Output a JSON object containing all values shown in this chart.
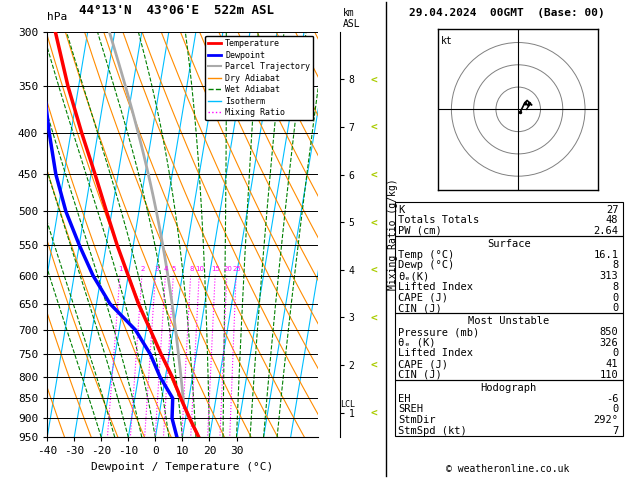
{
  "title_left": "44°13'N  43°06'E  522m ASL",
  "title_right": "29.04.2024  00GMT  (Base: 00)",
  "label_hpa": "hPa",
  "label_km_asl": "km\nASL",
  "xlabel": "Dewpoint / Temperature (°C)",
  "ylabel_mixing": "Mixing Ratio (g/kg)",
  "pressure_ticks": [
    300,
    350,
    400,
    450,
    500,
    550,
    600,
    650,
    700,
    750,
    800,
    850,
    900,
    950
  ],
  "temp_ticks": [
    -40,
    -30,
    -20,
    -10,
    0,
    10,
    20,
    30
  ],
  "background_color": "#ffffff",
  "color_temp": "#ff0000",
  "color_dewp": "#0000ff",
  "color_parcel": "#aaaaaa",
  "color_dry_adiabat": "#ff8c00",
  "color_wet_adiabat": "#008000",
  "color_isotherm": "#00bfff",
  "color_mixing": "#ff00ff",
  "color_km_arrows": "#aacc00",
  "stats_K": 27,
  "stats_TT": 48,
  "stats_PW": 2.64,
  "stats_surf_temp": 16.1,
  "stats_surf_dewp": 8,
  "stats_surf_thetae": 313,
  "stats_surf_li": 8,
  "stats_surf_cape": 0,
  "stats_surf_cin": 0,
  "stats_mu_press": 850,
  "stats_mu_thetae": 326,
  "stats_mu_li": 0,
  "stats_mu_cape": 41,
  "stats_mu_cin": 110,
  "stats_hodo_eh": -6,
  "stats_hodo_sreh": 0,
  "stats_hodo_stmdir": 292,
  "stats_hodo_stmspd": 7,
  "copyright": "© weatheronline.co.uk",
  "km_ticks": [
    1,
    2,
    3,
    4,
    5,
    6,
    7,
    8
  ],
  "lcl_pressure": 865,
  "pmin": 300,
  "pmax": 950,
  "skew_factor": 25,
  "temp_profile_p": [
    950,
    900,
    850,
    800,
    750,
    700,
    650,
    600,
    550,
    500,
    450,
    400,
    350,
    300
  ],
  "temp_profile_T": [
    16.1,
    11.5,
    7.0,
    2.5,
    -3.0,
    -8.5,
    -14.5,
    -20.0,
    -26.0,
    -32.0,
    -38.5,
    -46.0,
    -54.0,
    -62.0
  ],
  "dewp_profile_p": [
    950,
    900,
    850,
    800,
    750,
    700,
    650,
    600,
    550,
    500,
    450,
    400,
    350,
    300
  ],
  "dewp_profile_T": [
    8.0,
    5.0,
    4.0,
    -2.0,
    -7.0,
    -14.0,
    -25.0,
    -33.0,
    -40.0,
    -47.0,
    -53.0,
    -58.0,
    -63.0,
    -68.0
  ]
}
